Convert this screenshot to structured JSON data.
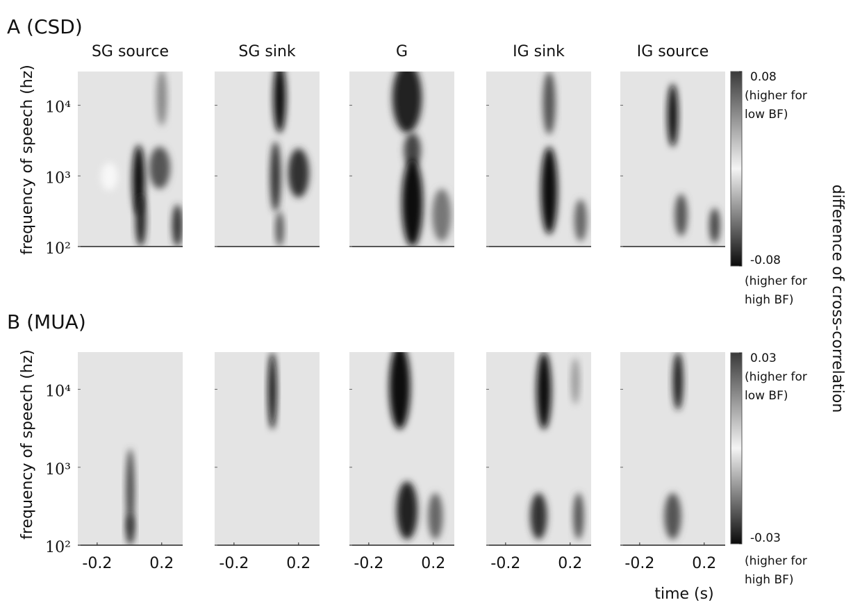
{
  "chart_data": [
    {
      "type": "heatmap",
      "title": "A (CSD)",
      "ylabel": "frequency of speech (hz)",
      "panels": [
        "SG source",
        "SG sink",
        "G",
        "IG sink",
        "IG source"
      ],
      "xlim": [
        -0.32,
        0.33
      ],
      "ylim": [
        100,
        30000
      ],
      "ylog": true,
      "yticks": [
        {
          "value": 100,
          "label": "10²"
        },
        {
          "value": 1000,
          "label": "10³"
        },
        {
          "value": 10000,
          "label": "10⁴"
        }
      ],
      "colorbar": {
        "lim": [
          -0.08,
          0.08
        ],
        "ticks": [
          0.08,
          -0.08
        ],
        "high_note": [
          "(higher for",
          "low BF)"
        ],
        "low_note": [
          "(higher for",
          "high BF)"
        ]
      }
    },
    {
      "type": "heatmap",
      "title": "B (MUA)",
      "ylabel": "frequency of speech (hz)",
      "xlim": [
        -0.32,
        0.33
      ],
      "ylim": [
        100,
        30000
      ],
      "ylog": true,
      "xticks": [
        -0.2,
        0.2
      ],
      "yticks": [
        {
          "value": 100,
          "label": "10²"
        },
        {
          "value": 1000,
          "label": "10³"
        },
        {
          "value": 10000,
          "label": "10⁴"
        }
      ],
      "colorbar": {
        "lim": [
          -0.03,
          0.03
        ],
        "ticks": [
          0.03,
          -0.03
        ],
        "high_note": [
          "(higher for",
          "low BF)"
        ],
        "low_note": [
          "(higher for",
          "high BF)"
        ]
      }
    }
  ],
  "shared": {
    "xlabel": "time (s)",
    "colorbar_label": "difference of cross-correlation"
  }
}
